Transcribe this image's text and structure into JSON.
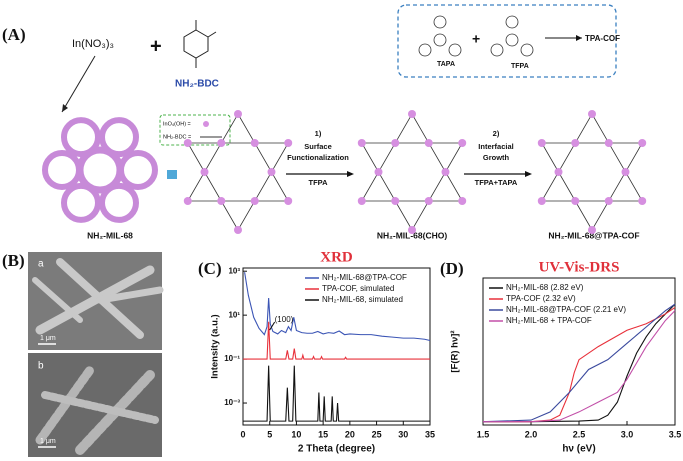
{
  "panel_labels": [
    "(A)",
    "(B)",
    "(C)",
    "(D)"
  ],
  "scheme": {
    "precursor": "In(NO₃)₃",
    "plus": "+",
    "linker": "NH₂-BDC",
    "box_monomers": [
      "TAPA",
      "TFPA"
    ],
    "box_product": "TPA-COF",
    "legend": [
      "InO₄(OH) =",
      "NH₂-BDC ="
    ],
    "step1": [
      "1)",
      "Surface",
      "Functionalization",
      "TFPA"
    ],
    "step2": [
      "2)",
      "Interfacial",
      "Growth",
      "TFPA+TAPA"
    ],
    "products": [
      "NH₂-MIL-68",
      "NH₂-MIL-68(CHO)",
      "NH₂-MIL-68@TPA-COF"
    ]
  },
  "sem": {
    "labels": [
      "a",
      "b"
    ],
    "scale_bar": "1 μm"
  },
  "chart_data": [
    {
      "type": "line",
      "title": "XRD",
      "xlabel": "2 Theta (degree)",
      "ylabel": "Intensity (a.u.)",
      "log_y": true,
      "legend": "upper right",
      "annotation": "(100)",
      "xlim": [
        0,
        35
      ],
      "xticks": [
        0,
        5,
        10,
        15,
        20,
        25,
        30,
        35
      ],
      "ylim": [
        0.0001,
        1400
      ],
      "yticks": [
        {
          "value": 1000,
          "label": "10³"
        },
        {
          "value": 10,
          "label": "10¹"
        },
        {
          "value": 0.1,
          "label": "10⁻¹"
        },
        {
          "value": 0.001,
          "label": "10⁻³"
        }
      ],
      "series": [
        {
          "name": "NH₂-MIL-68@TPA-COF",
          "color": "#3b55b5",
          "x": [
            0.3,
            1,
            2,
            3,
            4,
            4.5,
            4.8,
            5.1,
            5.6,
            6.5,
            7.2,
            8,
            8.5,
            9,
            9.5,
            10,
            11,
            12,
            13,
            14,
            15,
            16,
            17,
            18,
            19,
            20,
            22,
            24,
            26,
            28,
            30,
            32,
            34,
            35
          ],
          "values": [
            900,
            80,
            8,
            2.5,
            1.3,
            3,
            60,
            4,
            1.8,
            1.4,
            2,
            1.6,
            3,
            2,
            8,
            2,
            1.6,
            1.5,
            1.5,
            1.8,
            1.4,
            1.6,
            1.5,
            1.9,
            1.3,
            1.4,
            1.3,
            1.3,
            1.1,
            1.0,
            0.9,
            0.9,
            0.8,
            0.7
          ]
        },
        {
          "name": "TPA-COF, simulated",
          "color": "#e8303a",
          "x": [
            0,
            4.5,
            4.8,
            5.1,
            8,
            8.3,
            8.6,
            9.3,
            9.6,
            9.9,
            11,
            11.2,
            11.4,
            13,
            13.2,
            13.4,
            14.5,
            14.7,
            14.9,
            19,
            19.2,
            19.4,
            35
          ],
          "values": [
            0.1,
            0.1,
            5,
            0.1,
            0.1,
            0.25,
            0.1,
            0.1,
            0.3,
            0.1,
            0.1,
            0.15,
            0.1,
            0.1,
            0.13,
            0.1,
            0.1,
            0.13,
            0.1,
            0.1,
            0.12,
            0.1,
            0.1
          ]
        },
        {
          "name": "NH₂-MIL-68, simulated",
          "color": "#111111",
          "x": [
            0,
            4.5,
            4.8,
            5.1,
            8,
            8.3,
            8.6,
            9.3,
            9.6,
            9.9,
            14,
            14.2,
            14.4,
            15,
            15.2,
            15.4,
            16.5,
            16.7,
            16.9,
            17.5,
            17.7,
            17.9,
            35
          ],
          "values": [
            0.00015,
            0.00015,
            0.05,
            0.00015,
            0.00015,
            0.005,
            0.00015,
            0.00015,
            0.05,
            0.00015,
            0.00015,
            0.003,
            0.00015,
            0.00015,
            0.002,
            0.00015,
            0.00015,
            0.002,
            0.00015,
            0.00015,
            0.001,
            0.00015,
            0.00015
          ]
        }
      ]
    },
    {
      "type": "line",
      "title": "UV-Vis-DRS",
      "xlabel": "hν (eV)",
      "ylabel": "[F(R) hν]²",
      "log_y": false,
      "legend": "upper left",
      "xlim": [
        1.5,
        3.5
      ],
      "xticks": [
        1.5,
        {
          "value": 2,
          "label": "2.0"
        },
        2.5,
        {
          "value": 3,
          "label": "3.0"
        },
        3.5
      ],
      "ylim": [
        0,
        0.45
      ],
      "yticks": [],
      "series": [
        {
          "name": "NH₂-MIL-68 (2.82 eV)",
          "color": "#111111",
          "x": [
            1.5,
            2.0,
            2.5,
            2.7,
            2.8,
            2.9,
            3.0,
            3.1,
            3.2,
            3.3,
            3.4,
            3.5
          ],
          "values": [
            0.01,
            0.01,
            0.012,
            0.015,
            0.03,
            0.07,
            0.15,
            0.22,
            0.27,
            0.31,
            0.34,
            0.37
          ]
        },
        {
          "name": "TPA-COF (2.32 eV)",
          "color": "#e8303a",
          "x": [
            1.5,
            2.0,
            2.2,
            2.3,
            2.4,
            2.45,
            2.5,
            2.7,
            3.0,
            3.2,
            3.4,
            3.5
          ],
          "values": [
            0.01,
            0.01,
            0.015,
            0.03,
            0.1,
            0.16,
            0.2,
            0.24,
            0.29,
            0.31,
            0.34,
            0.36
          ]
        },
        {
          "name": "NH₂-MIL-68@TPA-COF (2.21 eV)",
          "color": "#3b4a9e",
          "x": [
            1.5,
            2.0,
            2.2,
            2.4,
            2.6,
            2.8,
            3.0,
            3.2,
            3.4,
            3.5
          ],
          "values": [
            0.01,
            0.015,
            0.04,
            0.1,
            0.17,
            0.2,
            0.25,
            0.3,
            0.35,
            0.37
          ]
        },
        {
          "name": "NH₂-MIL-68 + TPA-COF",
          "color": "#c24fa8",
          "x": [
            1.5,
            2.0,
            2.3,
            2.5,
            2.7,
            2.9,
            3.0,
            3.2,
            3.4,
            3.5
          ],
          "values": [
            0.01,
            0.01,
            0.015,
            0.04,
            0.07,
            0.1,
            0.14,
            0.24,
            0.32,
            0.35
          ]
        }
      ]
    }
  ]
}
